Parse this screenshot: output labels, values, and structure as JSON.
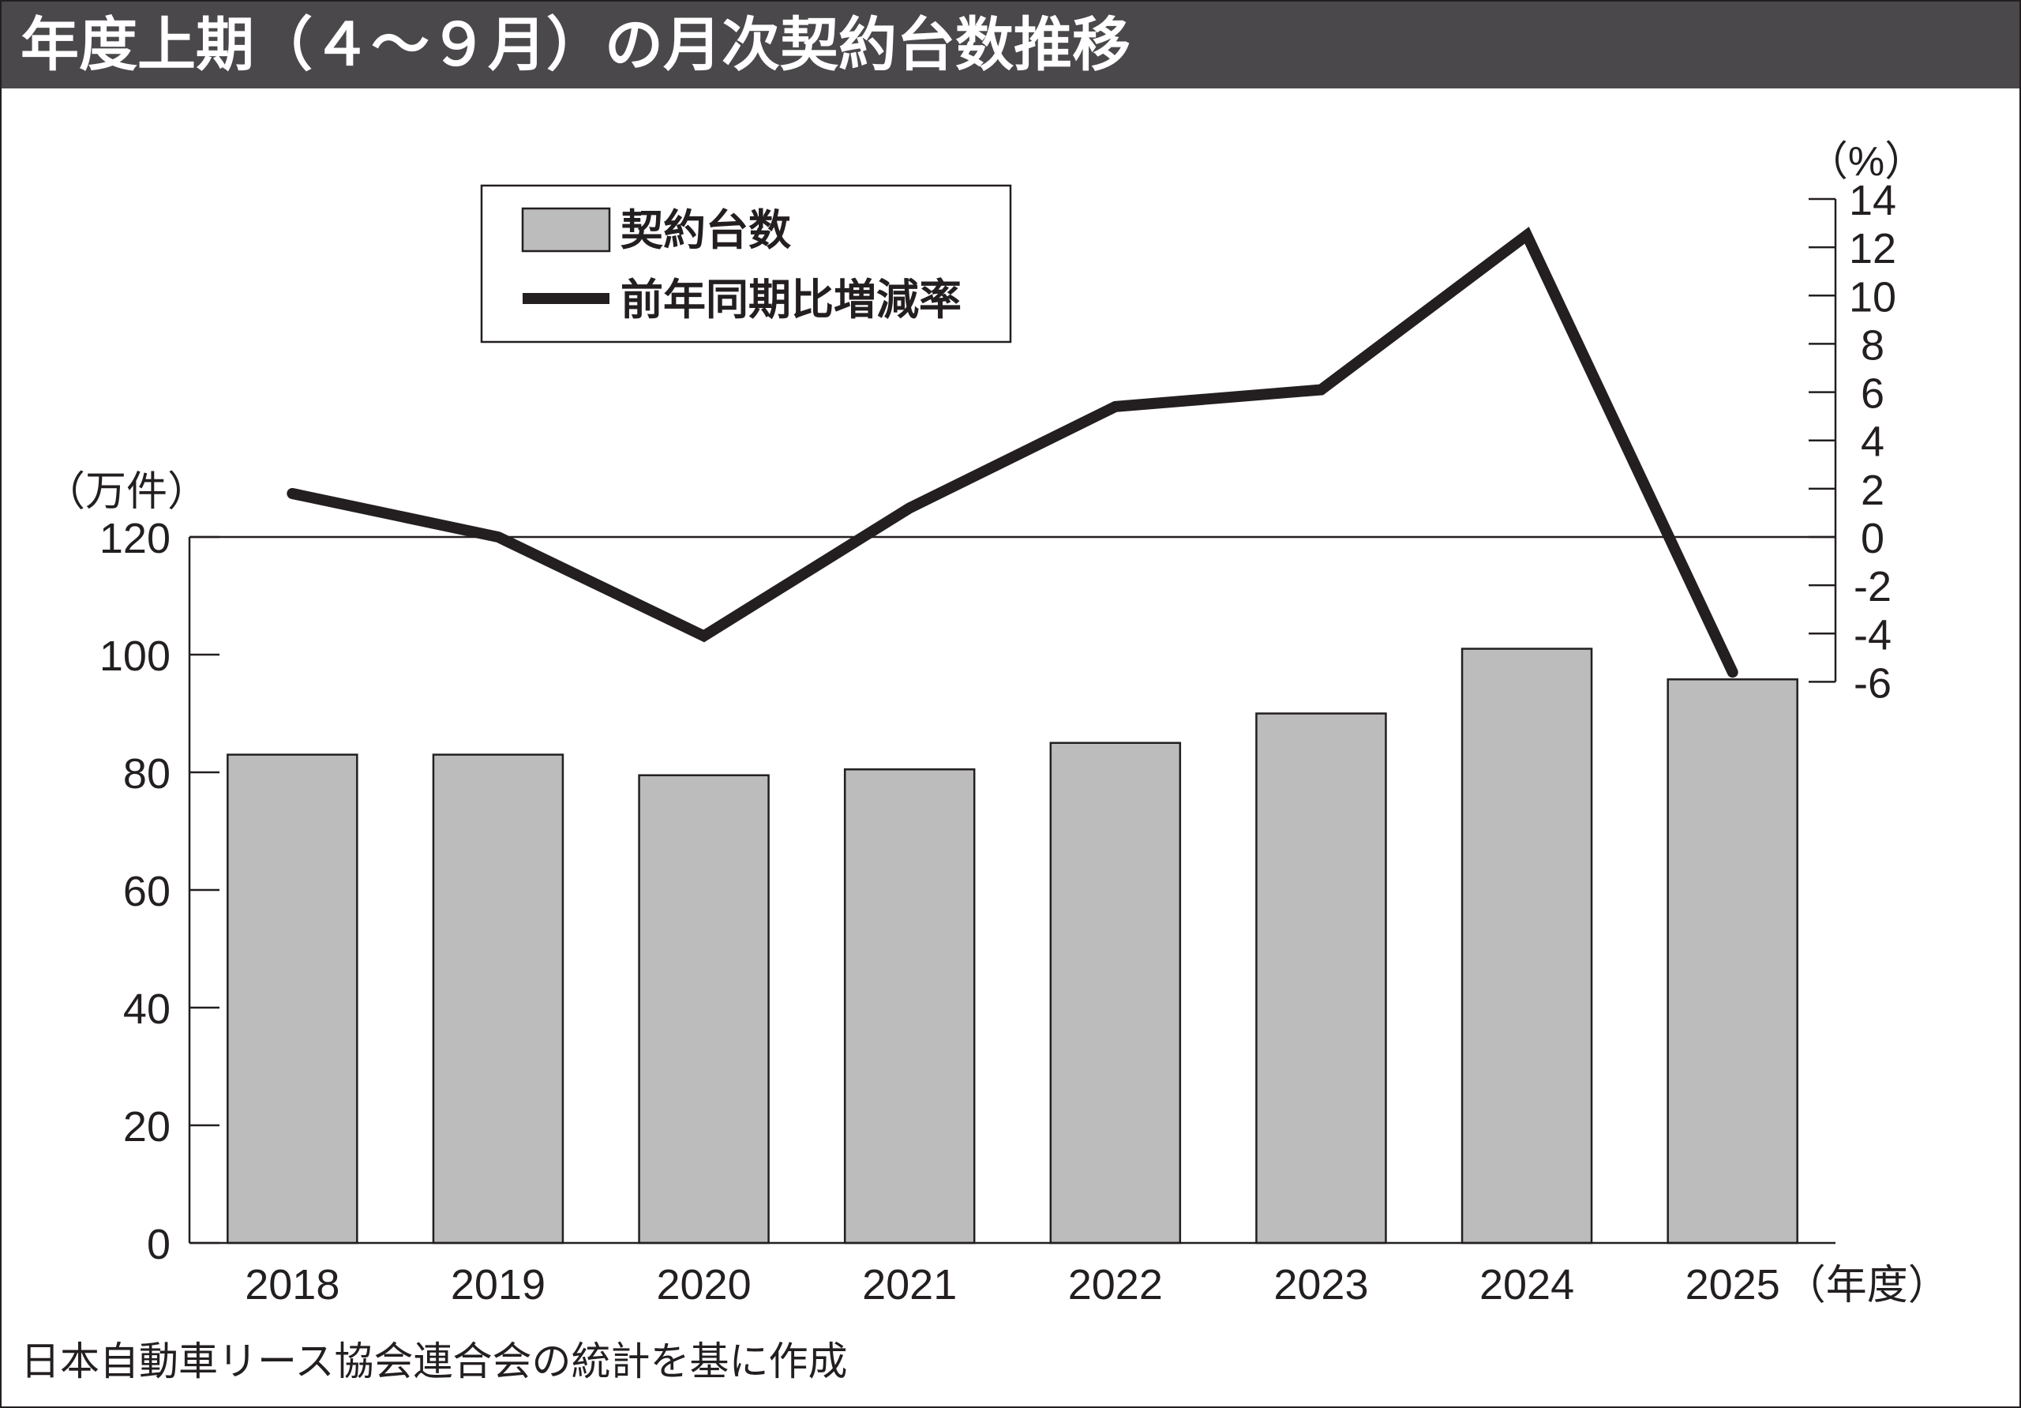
{
  "title": "年度上期（４～９月）の月次契約台数推移",
  "source": "日本自動車リース協会連合会の統計を基に作成",
  "colors": {
    "bar": "#bcbcbc",
    "line": "#231f20",
    "title_bg": "#4b484c",
    "title_text": "#ffffff"
  },
  "chart_data": {
    "type": "bar",
    "categories": [
      "2018",
      "2019",
      "2020",
      "2021",
      "2022",
      "2023",
      "2024",
      "2025"
    ],
    "x_unit": "（年度）",
    "series": [
      {
        "name": "契約台数",
        "type": "bar",
        "axis": "left",
        "values": [
          83.0,
          83.0,
          79.5,
          80.5,
          85.0,
          90.0,
          101.0,
          95.8
        ]
      },
      {
        "name": "前年同期比増減率",
        "type": "line",
        "axis": "right",
        "values": [
          1.8,
          0.0,
          -4.1,
          1.2,
          5.4,
          6.1,
          12.5,
          -5.6
        ]
      }
    ],
    "y_left": {
      "unit": "（万件）",
      "range": [
        0,
        120
      ],
      "ticks": [
        0,
        20,
        40,
        60,
        80,
        100,
        120
      ]
    },
    "y_right": {
      "unit": "（%）",
      "range": [
        -6,
        14
      ],
      "ticks": [
        14,
        12,
        10,
        8,
        6,
        4,
        2,
        0,
        -2,
        -4,
        -6
      ]
    },
    "legend_position": "top-left",
    "grid": false
  }
}
